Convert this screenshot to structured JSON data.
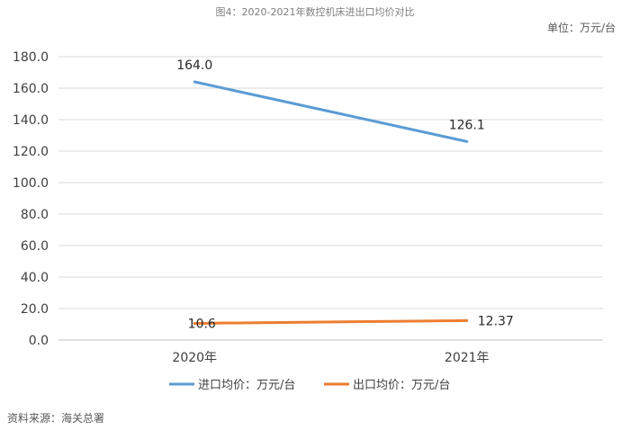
{
  "chart_data": {
    "type": "line",
    "title": "图4：2020-2021年数控机床进出口均价对比",
    "unit_label": "单位：万元/台",
    "source": "资料来源：海关总署",
    "categories": [
      "2020年",
      "2021年"
    ],
    "ylim": [
      0,
      180
    ],
    "yticks": [
      "0.0",
      "20.0",
      "40.0",
      "60.0",
      "80.0",
      "100.0",
      "120.0",
      "140.0",
      "160.0",
      "180.0"
    ],
    "grid": true,
    "legend_position": "bottom",
    "series": [
      {
        "name": "进口均价：万元/台",
        "values": [
          164.0,
          126.1
        ],
        "labels": [
          "164.0",
          "126.1"
        ],
        "color": "#5b9bd5"
      },
      {
        "name": "出口均价：万元/台",
        "values": [
          10.6,
          12.37
        ],
        "labels": [
          "10.6",
          "12.37"
        ],
        "color": "#ed7d31"
      }
    ]
  }
}
